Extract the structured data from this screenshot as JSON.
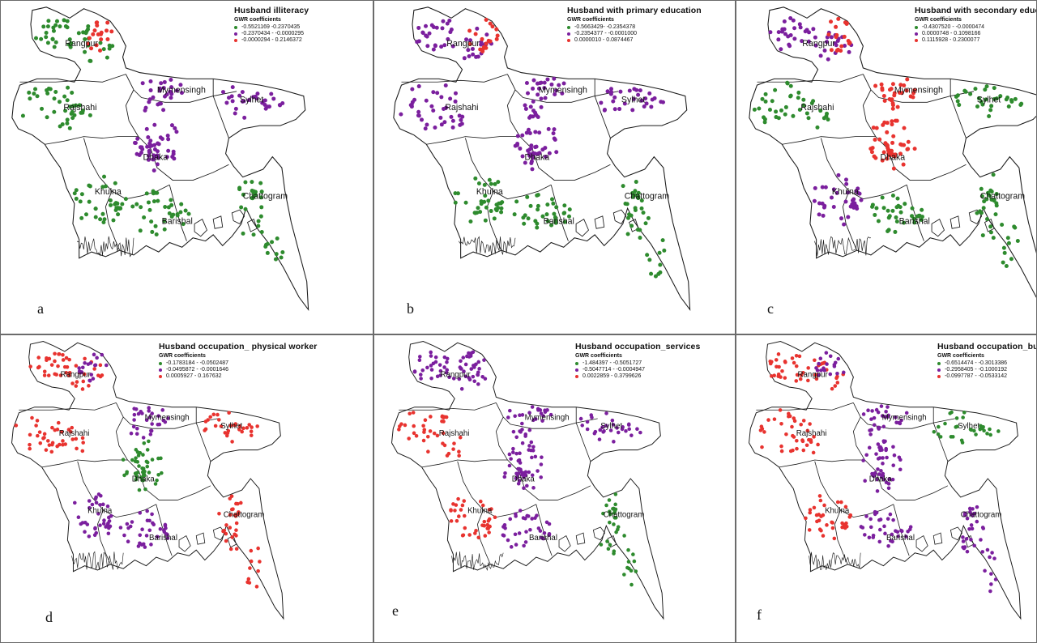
{
  "colors": {
    "green": "#2e8b2e",
    "purple": "#7b1f9e",
    "red": "#e8332f",
    "outline": "#1a1a1a"
  },
  "panels": [
    {
      "letter": "a",
      "title": "Husband illiteracy",
      "subtitle": "GWR coefficients",
      "legend": [
        "-0.5521169 -0.2370435",
        "-0.2370434 -  -0.0000295",
        "-0.0000294 - 0.2146372"
      ],
      "regions": {
        "Rangpur": "green",
        "Rajshahi": "green",
        "Mymensingh": "purple",
        "Sylhet": "purple",
        "Dhaka": "purple",
        "Khulna": "green",
        "Barishal": "green",
        "Chattogram": "green",
        "NorthTip": "red"
      }
    },
    {
      "letter": "b",
      "title": "Husband with primary education",
      "subtitle": "GWR coefficients",
      "legend": [
        "-0.5663429- -0.2354378",
        "-0.2354377 - -0.0001000",
        "0.0000010 - 0.0874467"
      ],
      "regions": {
        "Rangpur": "purple",
        "Rajshahi": "purple",
        "Mymensingh": "purple",
        "Sylhet": "purple",
        "Dhaka": "purple",
        "Khulna": "green",
        "Barishal": "green",
        "Chattogram": "green",
        "NorthTip": "red"
      }
    },
    {
      "letter": "c",
      "title": "Husband with secondary educatio",
      "subtitle": "GWR coefficients",
      "legend": [
        "-0.4307520 - -0.0000474",
        "0.0000748 - 0.1098166",
        "0.1115928 - 0.2300077"
      ],
      "regions": {
        "Rangpur": "purple",
        "Rajshahi": "green",
        "Mymensingh": "red",
        "Sylhet": "green",
        "Dhaka": "red",
        "Khulna": "purple",
        "Barishal": "green",
        "Chattogram": "green",
        "NorthTip": "red"
      }
    },
    {
      "letter": "d",
      "title": "Husband occupation_ physical worker",
      "subtitle": "GWR coefficients",
      "legend": [
        "-0.1783184 - -0.0502487",
        "-0.0495872 - -0.0001646",
        "0.0005927 - 0.167632"
      ],
      "regions": {
        "Rangpur": "red",
        "Rajshahi": "red",
        "Mymensingh": "purple",
        "Sylhet": "red",
        "Dhaka": "green",
        "Khulna": "purple",
        "Barishal": "purple",
        "Chattogram": "red",
        "NorthTip": "purple"
      }
    },
    {
      "letter": "e",
      "title": "Husband occupation_services",
      "subtitle": "GWR coefficients",
      "legend": [
        "-1.484397 - -0.5051727",
        "-0.5047714 - -0.0004947",
        "0.0022859 - 0.3799626"
      ],
      "regions": {
        "Rangpur": "purple",
        "Rajshahi": "red",
        "Mymensingh": "purple",
        "Sylhet": "purple",
        "Dhaka": "purple",
        "Khulna": "red",
        "Barishal": "purple",
        "Chattogram": "green",
        "NorthTip": "purple"
      }
    },
    {
      "letter": "f",
      "title": "Husband occupation_busi",
      "subtitle": "GWR coefficients",
      "legend": [
        "-0.6514474 -  -0.3013386",
        "-0.2958405 -  -0.1000192",
        "-0.0997787 - -0.0533142"
      ],
      "regions": {
        "Rangpur": "red",
        "Rajshahi": "red",
        "Mymensingh": "purple",
        "Sylhet": "green",
        "Dhaka": "purple",
        "Khulna": "red",
        "Barishal": "purple",
        "Chattogram": "purple",
        "NorthTip": "purple"
      }
    }
  ],
  "place_labels": [
    "Rangpur",
    "Rajshahi",
    "Mymensingh",
    "Sylhet",
    "Dhaka",
    "Khulna",
    "Barishal",
    "Chattogram"
  ]
}
